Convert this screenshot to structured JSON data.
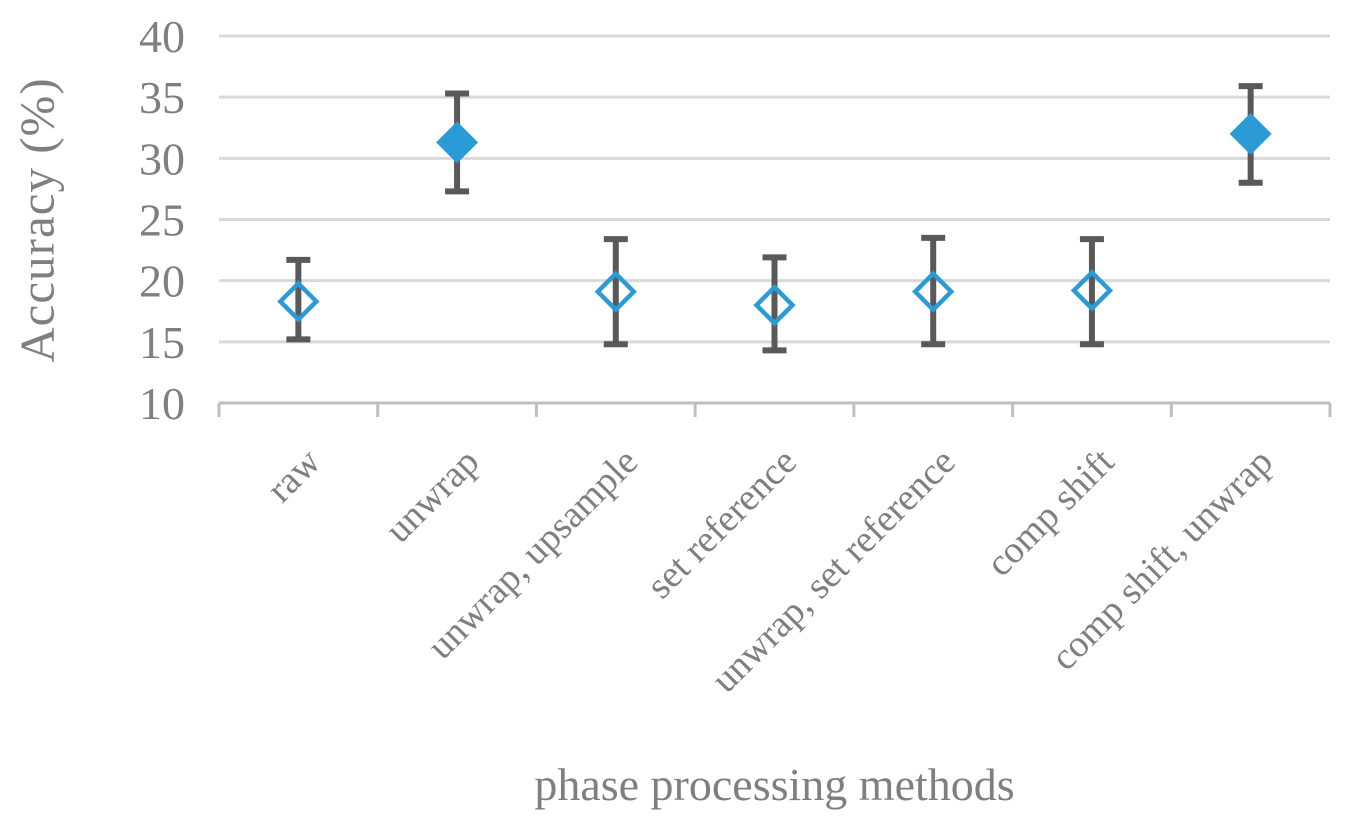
{
  "chart_data": {
    "type": "scatter",
    "title": "",
    "xlabel": "phase processing methods",
    "ylabel": "Accuracy (%)",
    "categories": [
      "raw",
      "unwrap",
      "unwrap, upsample",
      "set reference",
      "unwrap, set reference",
      "comp shift",
      "comp shift, unwrap"
    ],
    "series": [
      {
        "name": "accuracy",
        "values": [
          18.3,
          31.3,
          19.1,
          18.0,
          19.1,
          19.2,
          32.0
        ],
        "error_low": [
          15.2,
          27.3,
          14.8,
          14.3,
          14.8,
          14.8,
          28.0
        ],
        "error_high": [
          21.7,
          35.3,
          23.4,
          21.9,
          23.5,
          23.4,
          35.9
        ],
        "marker": "diamond",
        "marker_filled": [
          false,
          true,
          false,
          false,
          false,
          false,
          true
        ]
      }
    ],
    "ylim": [
      10,
      40
    ],
    "yticks": [
      40,
      35,
      30,
      25,
      20,
      15,
      10
    ],
    "grid": true,
    "legend_position": "none",
    "x_label_rotation_deg": 45,
    "colors": {
      "marker_blue": "#2B9BD7",
      "error_bar_gray": "#595959",
      "gridline_gray": "#D9D9D9",
      "axis_line_gray": "#BFBFBF",
      "text_gray": "#7F7F7F"
    }
  }
}
